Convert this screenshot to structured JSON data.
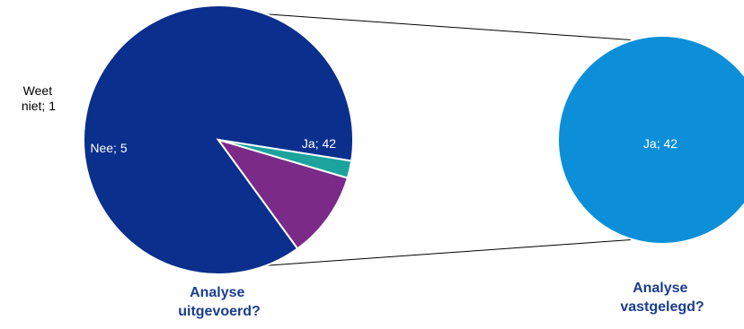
{
  "chart_data": [
    {
      "type": "pie",
      "caption_lines": [
        "Analyse",
        "uitgevoerd?"
      ],
      "slices": [
        {
          "category": "Ja",
          "value": 42,
          "label": "Ja; 42",
          "color": "#0a2f8c"
        },
        {
          "category": "Weet niet",
          "value": 1,
          "label_lines": [
            "Weet",
            "niet; 1"
          ],
          "color": "#1ba39c"
        },
        {
          "category": "Nee",
          "value": 5,
          "label": "Nee; 5",
          "color": "#7b2a88"
        }
      ]
    },
    {
      "type": "pie",
      "caption_lines": [
        "Analyse",
        "vastgelegd?"
      ],
      "slices": [
        {
          "category": "Ja",
          "value": 42,
          "label": "Ja; 42",
          "color": "#0c8fd8"
        }
      ]
    }
  ]
}
